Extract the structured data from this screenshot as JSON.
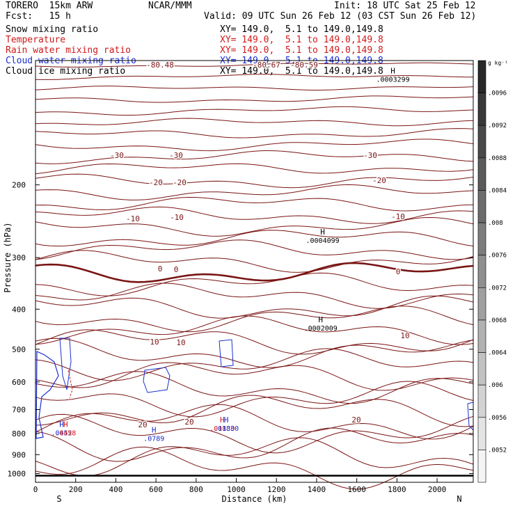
{
  "header": {
    "model": "TORERO  15km ARW",
    "org": "NCAR/MMM",
    "init": "Init: 18 UTC Sat 25 Feb 12",
    "fcst": "Fcst:   15 h",
    "valid": "Valid: 09 UTC Sun 26 Feb 12 (03 CST Sun 26 Feb 12)"
  },
  "legend": [
    {
      "name": "Snow mixing ratio",
      "range": "XY= 149.0,  5.1 to 149.0,149.8",
      "color": "#000000"
    },
    {
      "name": "Temperature",
      "range": "XY= 149.0,  5.1 to 149.0,149.8",
      "color": "#d01a1a"
    },
    {
      "name": "Rain water mixing ratio",
      "range": "XY= 149.0,  5.1 to 149.0,149.8",
      "color": "#d01a1a"
    },
    {
      "name": "Cloud water mixing ratio",
      "range": "XY= 149.0,  5.1 to 149.0,149.8",
      "color": "#1a2fd0"
    },
    {
      "name": "Cloud ice mixing ratio",
      "range": "XY= 149.0,  5.1 to 149.0,149.8",
      "color": "#000000"
    }
  ],
  "chart_data": {
    "type": "contour",
    "xlabel": "Distance (km)",
    "ylabel": "Pressure (hPa)",
    "xlim": [
      0,
      2180
    ],
    "ylim": [
      1050,
      100
    ],
    "y_scale": "log",
    "x_ticks": [
      0,
      200,
      400,
      600,
      800,
      1000,
      1200,
      1400,
      1600,
      1800,
      2000
    ],
    "y_ticks": [
      200,
      300,
      400,
      500,
      600,
      700,
      800,
      900,
      1000
    ],
    "x_end_labels": {
      "left": "S",
      "right": "N"
    },
    "colorbar": {
      "unit": "g kg⁻¹",
      "ticks": [
        ".0096",
        ".0092",
        ".0088",
        ".0084",
        ".008",
        ".0076",
        ".0072",
        ".0068",
        ".0064",
        ".006",
        ".0056",
        ".0052"
      ]
    },
    "temperature_labels": [
      "-30",
      "-30",
      "-30",
      "-20",
      "-20",
      "-20",
      "-10",
      "-10",
      "-10",
      "0",
      "0",
      "0",
      "10",
      "10",
      "10",
      "20",
      "20",
      "20",
      "-80.48",
      "-80.67",
      "-80.59"
    ],
    "extrema": [
      {
        "label": "H",
        "value": ".0004099",
        "x": 1430,
        "p": 270,
        "field": "snow"
      },
      {
        "label": "H",
        "value": ".0002009",
        "x": 1420,
        "p": 440,
        "field": "snow"
      },
      {
        "label": "H",
        "value": ".0003299",
        "x": 1780,
        "p": 110,
        "field": "snow"
      },
      {
        "label": "H",
        "value": ".0789",
        "x": 590,
        "p": 815,
        "field": "cloud water"
      },
      {
        "label": "H",
        "value": ".0452",
        "x": 130,
        "p": 790,
        "field": "cloud water"
      },
      {
        "label": "H",
        "value": ".0458",
        "x": 150,
        "p": 790,
        "field": "rain"
      },
      {
        "label": "H",
        "value": ".01830",
        "x": 930,
        "p": 770,
        "field": "rain"
      },
      {
        "label": "H",
        "value": ".01830",
        "x": 950,
        "p": 770,
        "field": "cloud water"
      }
    ]
  }
}
